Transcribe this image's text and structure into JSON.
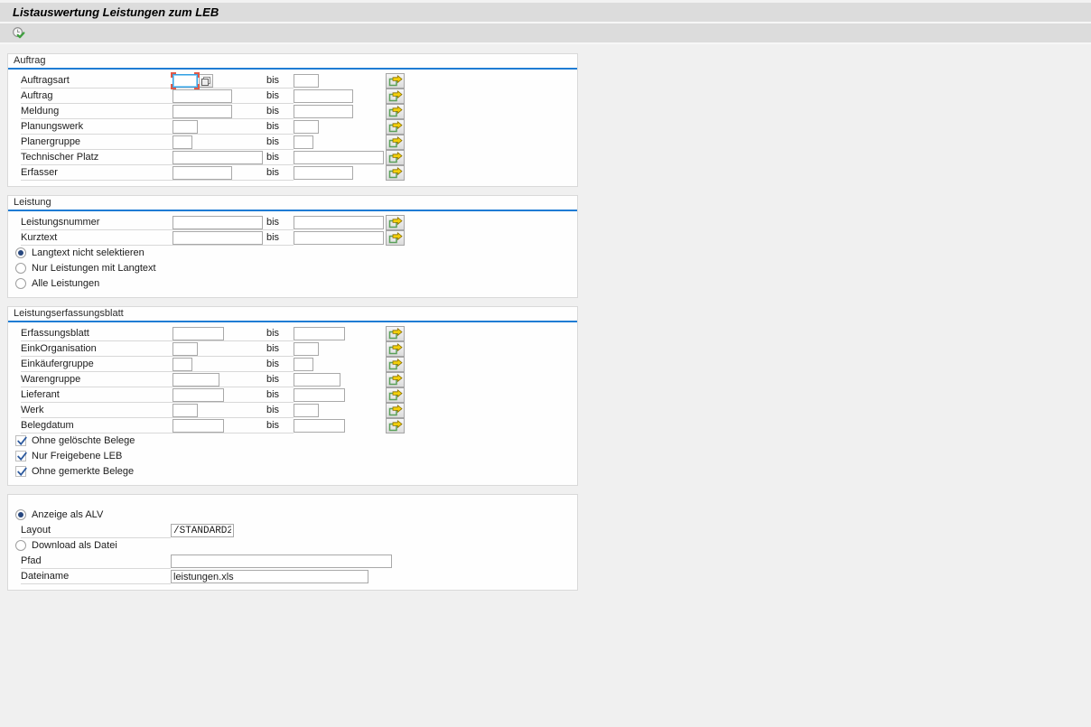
{
  "window": {
    "title": "Listauswertung Leistungen zum LEB"
  },
  "toolbar": {
    "execute_tooltip": "Ausführen"
  },
  "labels": {
    "bis": "bis"
  },
  "icons": {
    "execute": "execute-icon",
    "multi_select": "multi-select-arrow-icon",
    "matchcode": "matchcode-icon"
  },
  "colors": {
    "group_header_line": "#1f7cd4",
    "band_gray": "#dcdcdc",
    "page_background": "#f0f0f0",
    "check_blue": "#2d5a9e",
    "arrow_yellow": "#f3cf0b",
    "arrow_green": "#5aa05a",
    "focus_red": "#e05a49"
  },
  "sections": [
    {
      "id": "auftrag",
      "title": "Auftrag",
      "rows": [
        {
          "type": "range",
          "label": "Auftragsart",
          "size": "xs",
          "from_value": "",
          "to_value": "",
          "matchcode": true,
          "focused": true
        },
        {
          "type": "range",
          "label": "Auftrag",
          "size": "ml",
          "from_value": "",
          "to_value": ""
        },
        {
          "type": "range",
          "label": "Meldung",
          "size": "ml",
          "from_value": "",
          "to_value": ""
        },
        {
          "type": "range",
          "label": "Planungswerk",
          "size": "xs",
          "from_value": "",
          "to_value": ""
        },
        {
          "type": "range",
          "label": "Planergruppe",
          "size": "xxs",
          "from_value": "",
          "to_value": ""
        },
        {
          "type": "range",
          "label": "Technischer Platz",
          "size": "l",
          "from_value": "",
          "to_value": ""
        },
        {
          "type": "range",
          "label": "Erfasser",
          "size": "ml",
          "from_value": "",
          "to_value": ""
        }
      ]
    },
    {
      "id": "leistung",
      "title": "Leistung",
      "rows": [
        {
          "type": "range",
          "label": "Leistungsnummer",
          "size": "l",
          "from_value": "",
          "to_value": ""
        },
        {
          "type": "range",
          "label": "Kurztext",
          "size": "l",
          "from_value": "",
          "to_value": ""
        },
        {
          "type": "radio",
          "label": "Langtext nicht selektieren",
          "group": "langtext",
          "selected": true
        },
        {
          "type": "radio",
          "label": "Nur Leistungen mit Langtext",
          "group": "langtext",
          "selected": false
        },
        {
          "type": "radio",
          "label": "Alle Leistungen",
          "group": "langtext",
          "selected": false
        }
      ]
    },
    {
      "id": "leistungserfassungsblatt",
      "title": "Leistungserfassungsblatt",
      "rows": [
        {
          "type": "range",
          "label": "Erfassungsblatt",
          "size": "m",
          "from_value": "",
          "to_value": ""
        },
        {
          "type": "range",
          "label": "EinkOrganisation",
          "size": "xs",
          "from_value": "",
          "to_value": ""
        },
        {
          "type": "range",
          "label": "Einkäufergruppe",
          "size": "xxs",
          "from_value": "",
          "to_value": ""
        },
        {
          "type": "range",
          "label": "Warengruppe",
          "size": "s",
          "from_value": "",
          "to_value": ""
        },
        {
          "type": "range",
          "label": "Lieferant",
          "size": "m",
          "from_value": "",
          "to_value": ""
        },
        {
          "type": "range",
          "label": "Werk",
          "size": "xs",
          "from_value": "",
          "to_value": ""
        },
        {
          "type": "range",
          "label": "Belegdatum",
          "size": "m",
          "from_value": "",
          "to_value": ""
        },
        {
          "type": "checkbox",
          "label": "Ohne gelöschte Belege",
          "checked": true
        },
        {
          "type": "checkbox",
          "label": "Nur Freigebene LEB",
          "checked": true
        },
        {
          "type": "checkbox",
          "label": "Ohne gemerkte Belege",
          "checked": true
        }
      ]
    },
    {
      "id": "ausgabe",
      "title": "",
      "rows": [
        {
          "type": "radio",
          "label": "Anzeige als ALV",
          "group": "ausgabe",
          "selected": true
        },
        {
          "type": "field",
          "label": "Layout",
          "value": "/STANDARD2",
          "size": "s",
          "mono": true
        },
        {
          "type": "radio",
          "label": "Download als Datei",
          "group": "ausgabe",
          "selected": false
        },
        {
          "type": "field",
          "label": "Pfad",
          "value": "",
          "size": "xl"
        },
        {
          "type": "field",
          "label": "Dateiname",
          "value": "leistungen.xls",
          "size": "l"
        }
      ]
    }
  ]
}
